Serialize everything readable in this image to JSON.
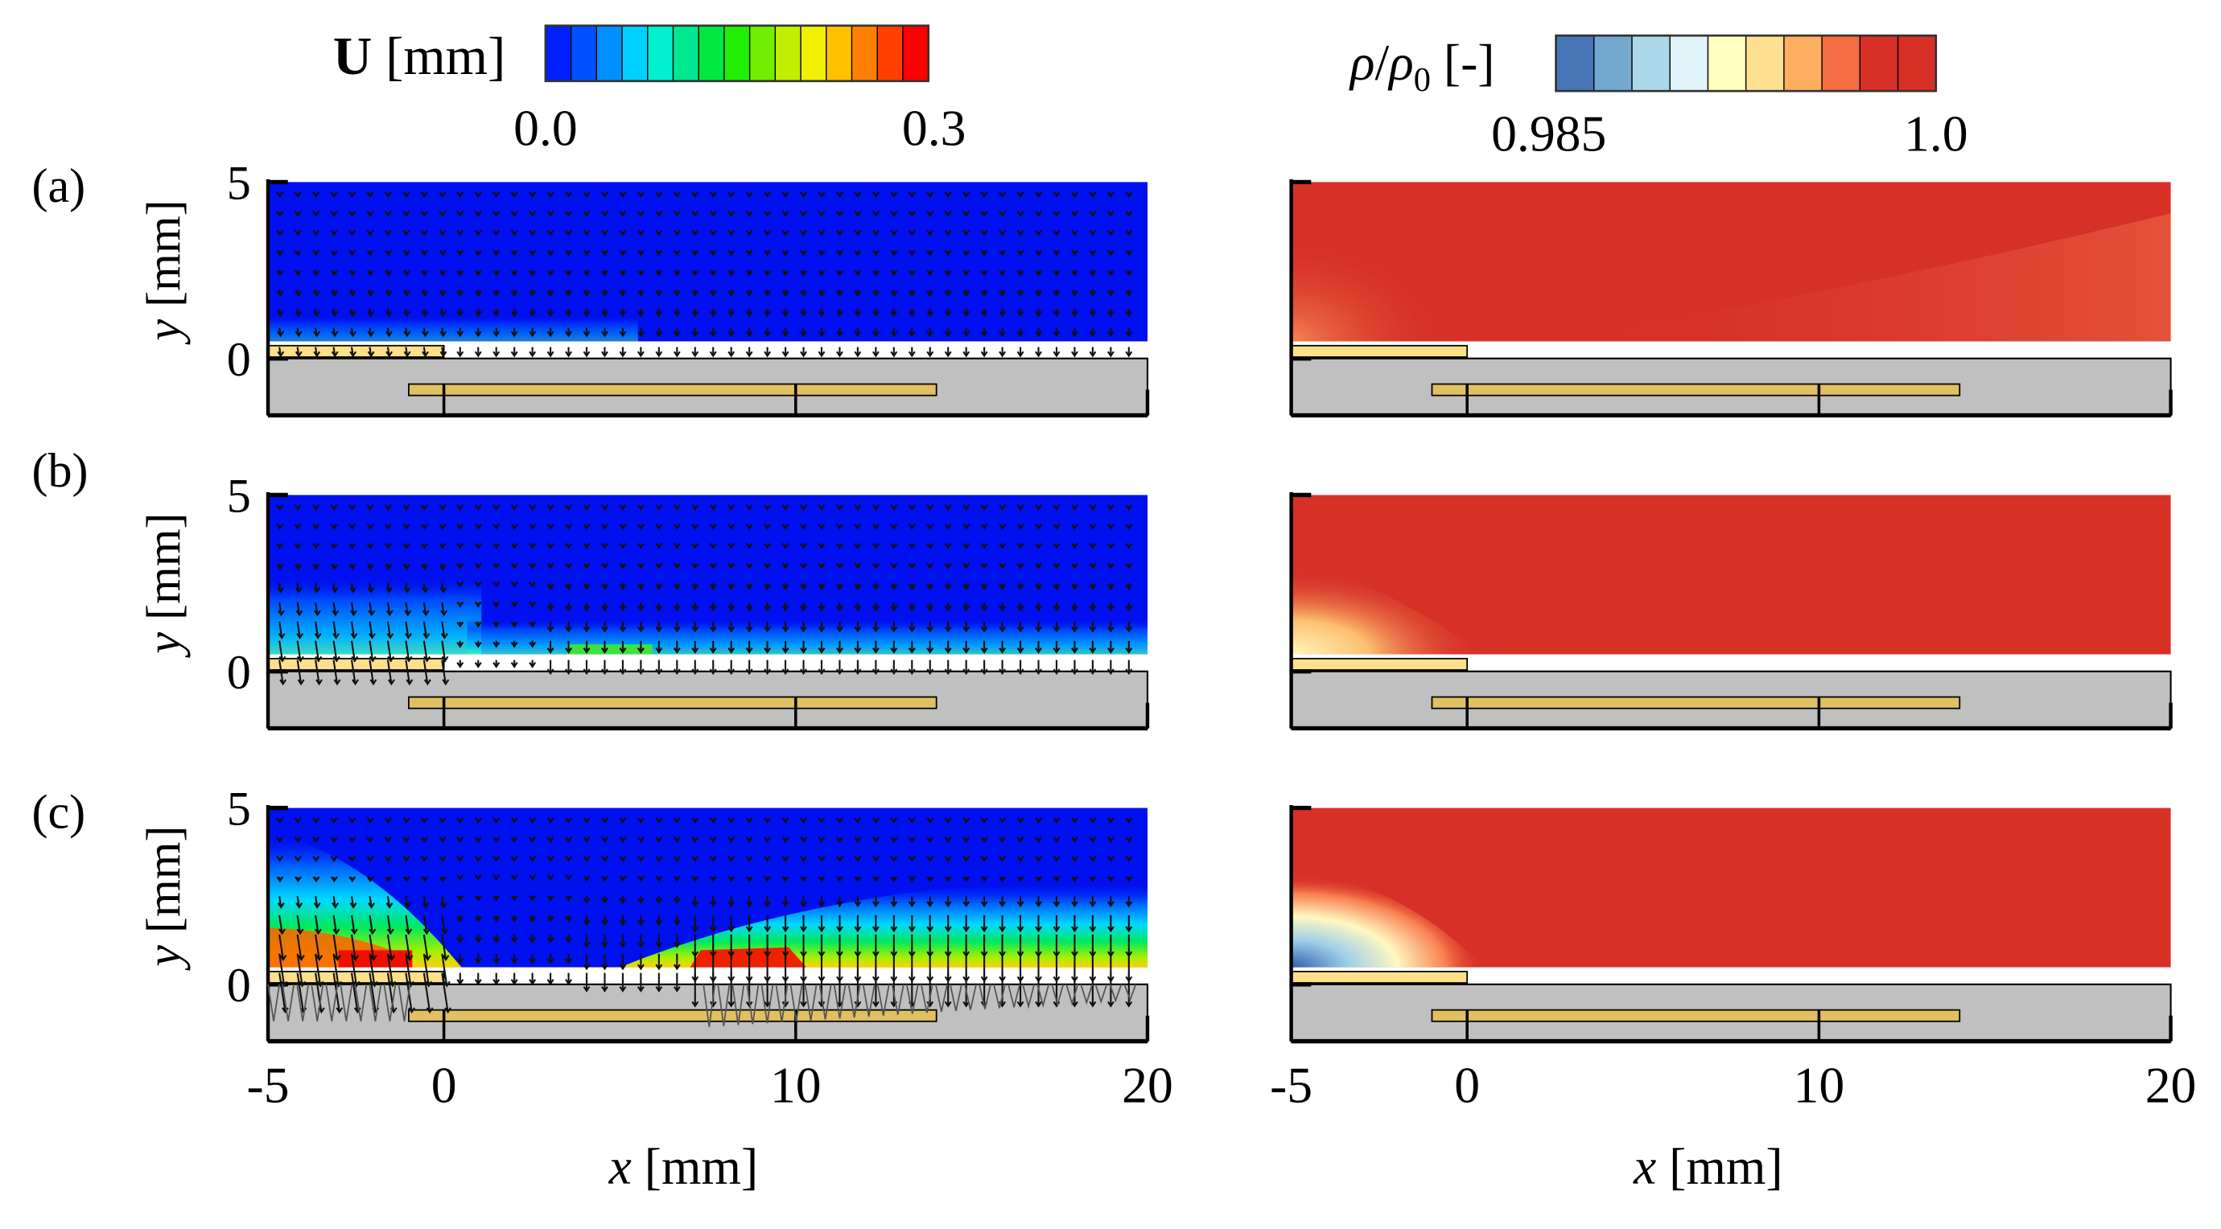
{
  "chart_data": {
    "type": "heatmap",
    "panel_labels": [
      "(a)",
      "(b)",
      "(c)"
    ],
    "xlabel": "x [mm]",
    "xlabel_var": "x",
    "xlabel_unit": "[mm]",
    "ylabel_var": "y",
    "ylabel_unit": "[mm]",
    "xlim": [
      -5,
      20
    ],
    "ylim": [
      0,
      5
    ],
    "xticks": [
      "-5",
      "0",
      "10",
      "20"
    ],
    "yticks": [
      "5",
      "0"
    ],
    "left_colorbar": {
      "label_main": "U",
      "label_unit": "[mm]",
      "min_label": "0.0",
      "max_label": "0.3",
      "range": [
        0.0,
        0.3
      ],
      "colormap": "jet",
      "colors": [
        "#0020ff",
        "#0050ff",
        "#0090ff",
        "#00d0ff",
        "#00f0d0",
        "#00e890",
        "#00e840",
        "#20f000",
        "#70f000",
        "#c0f000",
        "#f0f000",
        "#ffc000",
        "#ff8000",
        "#ff4000",
        "#ff0000"
      ]
    },
    "right_colorbar": {
      "label_rho": "ρ",
      "label_slash": "/",
      "label_rho0": "ρ",
      "label_sub": "0",
      "label_unit": "[-]",
      "min_label": "0.985",
      "max_label": "1.0",
      "range": [
        0.985,
        1.0
      ],
      "colormap": "RdYlBu_r",
      "colors": [
        "#4575b4",
        "#74a9cf",
        "#abd9e9",
        "#e0f3f8",
        "#ffffbf",
        "#fee090",
        "#fdae61",
        "#f46d43",
        "#d73027",
        "#d73027"
      ]
    },
    "colors": {
      "solid": "#c0c0c0",
      "electrode_top": "#fde08a",
      "electrode_bottom": "#e0c060",
      "field_low": "#0010ee",
      "density_high": "#d73027"
    }
  }
}
